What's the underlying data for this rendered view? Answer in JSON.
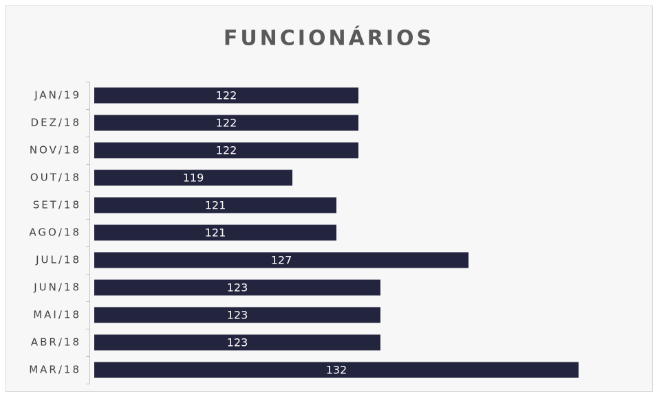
{
  "chart_data": {
    "type": "barh",
    "title": "FUNCIONÁRIOS",
    "categories": [
      "JAN/19",
      "DEZ/18",
      "NOV/18",
      "OUT/18",
      "SET/18",
      "AGO/18",
      "JUL/18",
      "JUN/18",
      "MAI/18",
      "ABR/18",
      "MAR/18"
    ],
    "values": [
      122,
      122,
      122,
      119,
      121,
      121,
      127,
      123,
      123,
      123,
      132
    ],
    "color": "#23253f",
    "xlim": [
      110,
      135
    ]
  }
}
